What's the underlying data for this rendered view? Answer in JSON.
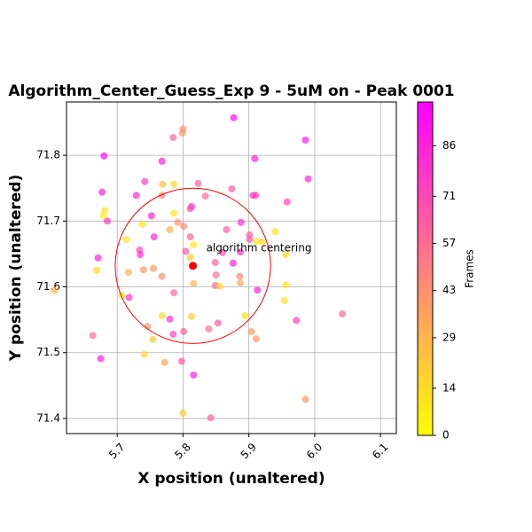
{
  "chart_data": {
    "type": "scatter",
    "title": "Algorithm_Center_Guess_Exp 9 - 5uM on - Peak 0001",
    "x_label": "X position (unaltered)",
    "y_label": "Y position (unaltered)",
    "xlim": [
      5.623,
      6.124
    ],
    "ylim": [
      71.377,
      71.881
    ],
    "xticks": [
      5.7,
      5.8,
      5.9,
      {
        "value": 6.0,
        "label": "6.0"
      },
      6.1
    ],
    "yticks": [
      71.4,
      71.5,
      71.6,
      71.7,
      71.8
    ],
    "grid": true,
    "x": [
      5.877,
      5.8,
      5.799,
      5.785,
      5.986,
      5.68,
      5.768,
      5.909,
      5.99,
      5.742,
      5.769,
      5.786,
      5.823,
      5.874,
      5.677,
      5.729,
      5.768,
      5.834,
      5.906,
      5.91,
      5.958,
      5.813,
      5.811,
      5.681,
      5.679,
      5.752,
      5.786,
      5.685,
      5.738,
      5.792,
      5.801,
      5.888,
      5.78,
      5.866,
      5.94,
      5.756,
      5.811,
      5.901,
      5.901,
      5.714,
      5.912,
      5.92,
      5.816,
      5.734,
      5.735,
      5.804,
      5.86,
      5.887,
      5.956,
      5.671,
      5.811,
      5.849,
      5.876,
      5.669,
      5.74,
      5.755,
      5.717,
      5.768,
      5.85,
      5.886,
      5.816,
      5.849,
      5.856,
      5.887,
      5.956,
      5.605,
      5.913,
      5.786,
      5.707,
      5.718,
      5.954,
      5.768,
      5.813,
      5.894,
      6.042,
      5.972,
      5.78,
      5.853,
      5.746,
      5.839,
      5.801,
      5.904,
      5.663,
      5.785,
      5.754,
      5.911,
      5.741,
      5.675,
      5.772,
      5.798,
      5.816,
      5.986,
      5.8,
      5.842
    ],
    "values": [
      71.857,
      71.84,
      71.834,
      71.827,
      71.823,
      71.799,
      71.791,
      71.795,
      71.764,
      71.76,
      71.756,
      71.756,
      71.757,
      71.749,
      71.744,
      71.739,
      71.739,
      71.738,
      71.739,
      71.739,
      71.729,
      71.722,
      71.719,
      71.716,
      71.708,
      71.708,
      71.712,
      71.7,
      71.695,
      71.698,
      71.692,
      71.698,
      71.687,
      71.687,
      71.684,
      71.676,
      71.676,
      71.679,
      71.672,
      71.672,
      71.669,
      71.668,
      71.664,
      71.656,
      71.649,
      71.654,
      71.652,
      71.653,
      71.649,
      71.644,
      71.645,
      71.637,
      71.636,
      71.625,
      71.626,
      71.628,
      71.622,
      71.616,
      71.618,
      71.616,
      71.605,
      71.602,
      71.601,
      71.606,
      71.603,
      71.595,
      71.595,
      71.591,
      71.587,
      71.584,
      71.579,
      71.556,
      71.555,
      71.556,
      71.559,
      71.549,
      71.551,
      71.545,
      71.54,
      71.536,
      71.532,
      71.532,
      71.526,
      71.528,
      71.52,
      71.521,
      71.497,
      71.491,
      71.485,
      71.487,
      71.466,
      71.429,
      71.408,
      71.401
    ],
    "frames": [
      95,
      45,
      40,
      60,
      90,
      95,
      88,
      88,
      85,
      75,
      25,
      15,
      60,
      65,
      88,
      82,
      45,
      55,
      70,
      80,
      75,
      80,
      70,
      10,
      5,
      85,
      10,
      78,
      8,
      40,
      45,
      80,
      30,
      65,
      10,
      85,
      60,
      62,
      65,
      10,
      10,
      15,
      10,
      70,
      82,
      65,
      70,
      80,
      15,
      85,
      20,
      60,
      88,
      15,
      40,
      40,
      30,
      45,
      55,
      45,
      30,
      60,
      15,
      35,
      10,
      30,
      85,
      60,
      10,
      82,
      12,
      15,
      20,
      10,
      58,
      75,
      80,
      65,
      40,
      55,
      60,
      40,
      55,
      75,
      20,
      40,
      15,
      88,
      35,
      65,
      88,
      40,
      20,
      60
    ],
    "colorbar": {
      "label": "Frames",
      "lim": [
        0,
        99
      ],
      "ticks": [
        0,
        14,
        29,
        43,
        57,
        71,
        86
      ],
      "colors": [
        "#ffff00",
        "#ff00ff"
      ]
    },
    "annotation": {
      "text": "algorithm centering",
      "x": 5.815,
      "y": 71.632,
      "radius": 0.118,
      "color": "#ff0000"
    }
  }
}
